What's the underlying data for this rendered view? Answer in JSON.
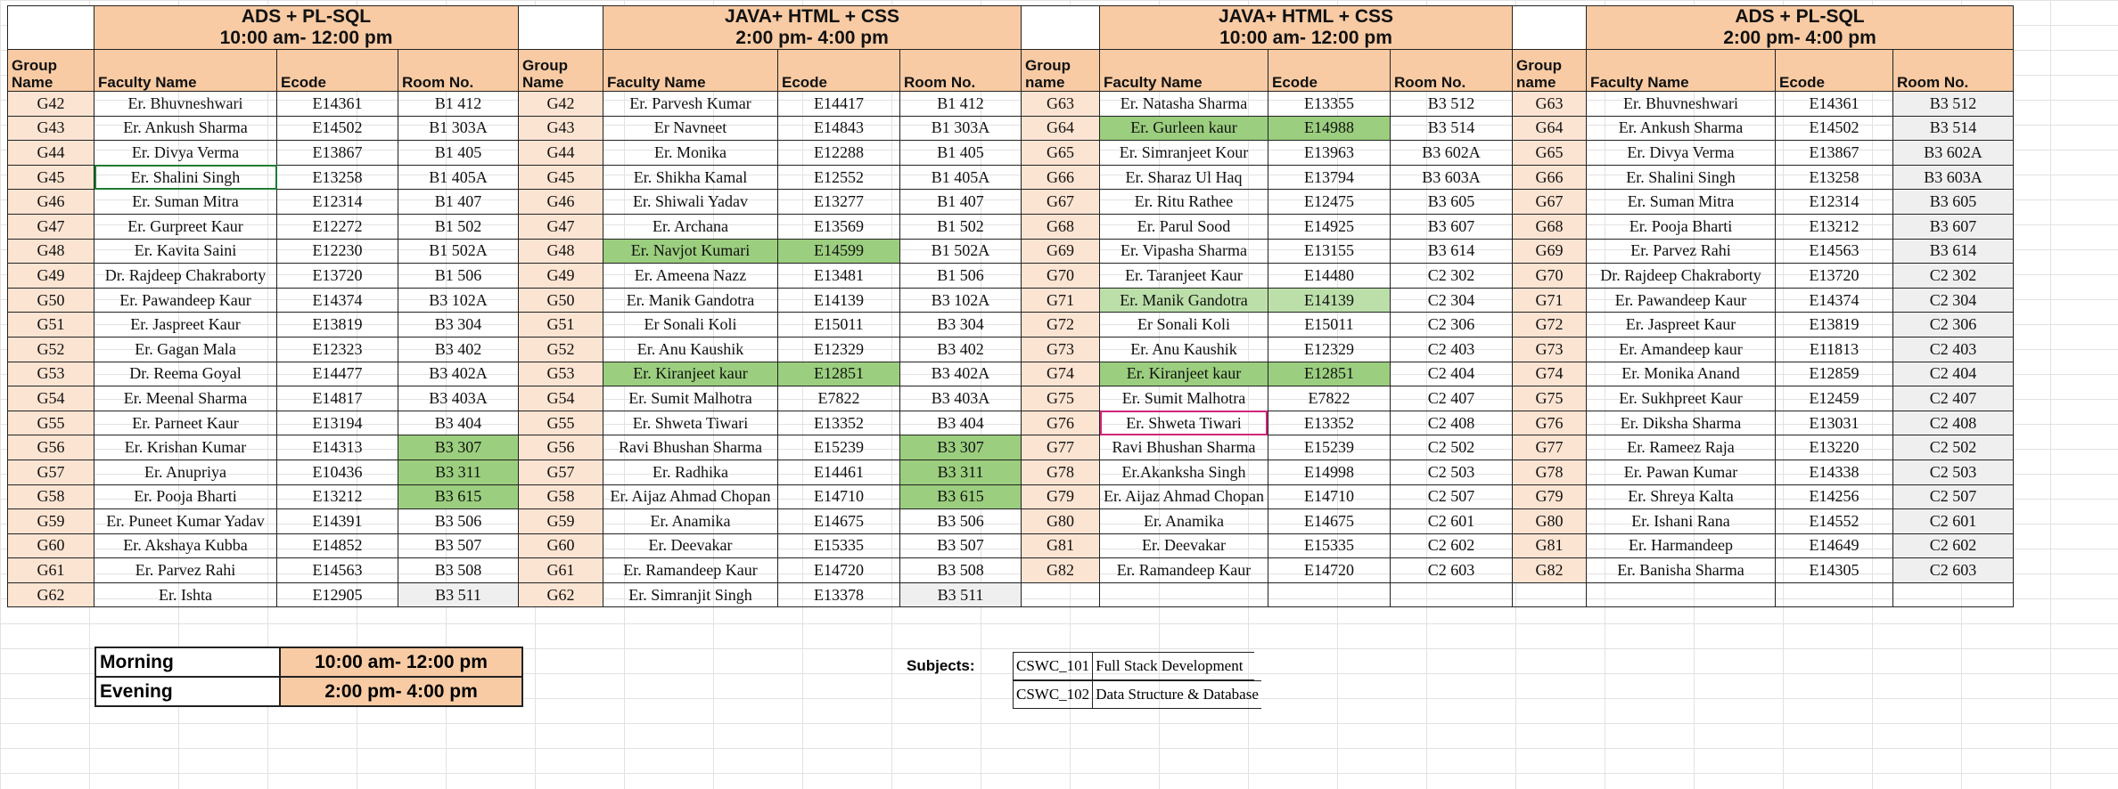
{
  "sections": [
    {
      "title": "ADS + PL-SQL",
      "time": "10:00 am- 12:00 pm"
    },
    {
      "title": "JAVA+ HTML + CSS",
      "time": "2:00 pm- 4:00 pm"
    },
    {
      "title": "JAVA+ HTML + CSS",
      "time": "10:00 am- 12:00 pm"
    },
    {
      "title": "ADS + PL-SQL",
      "time": "2:00 pm- 4:00 pm"
    }
  ],
  "headers": [
    [
      "Group Name",
      "Faculty Name",
      "Ecode",
      "Room No."
    ],
    [
      "Group Name",
      "Faculty Name",
      "Ecode",
      "Room No."
    ],
    [
      "Group name",
      "Faculty Name",
      "Ecode",
      "Room No."
    ],
    [
      "Group name",
      "Faculty Name",
      "Ecode",
      "Room No."
    ]
  ],
  "rows": [
    [
      "G42",
      "Er. Bhuvneshwari",
      "E14361",
      "B1 412",
      "G42",
      "Er. Parvesh Kumar",
      "E14417",
      "B1 412",
      "G63",
      "Er. Natasha Sharma",
      "E13355",
      "B3 512",
      "G63",
      "Er. Bhuvneshwari",
      "E14361",
      "B3 512"
    ],
    [
      "G43",
      "Er. Ankush Sharma",
      "E14502",
      "B1 303A",
      "G43",
      "Er Navneet",
      "E14843",
      "B1 303A",
      "G64",
      "Er. Gurleen kaur",
      "E14988",
      "B3 514",
      "G64",
      "Er. Ankush Sharma",
      "E14502",
      "B3 514"
    ],
    [
      "G44",
      "Er. Divya Verma",
      "E13867",
      "B1 405",
      "G44",
      "Er. Monika",
      "E12288",
      "B1 405",
      "G65",
      "Er. Simranjeet Kour",
      "E13963",
      "B3 602A",
      "G65",
      "Er. Divya Verma",
      "E13867",
      "B3 602A"
    ],
    [
      "G45",
      "Er. Shalini Singh",
      "E13258",
      "B1 405A",
      "G45",
      "Er. Shikha Kamal",
      "E12552",
      "B1 405A",
      "G66",
      "Er. Sharaz Ul Haq",
      "E13794",
      "B3 603A",
      "G66",
      "Er. Shalini Singh",
      "E13258",
      "B3 603A"
    ],
    [
      "G46",
      "Er. Suman Mitra",
      "E12314",
      "B1 407",
      "G46",
      "Er. Shiwali Yadav",
      "E13277",
      "B1 407",
      "G67",
      "Er. Ritu Rathee",
      "E12475",
      "B3 605",
      "G67",
      "Er. Suman Mitra",
      "E12314",
      "B3 605"
    ],
    [
      "G47",
      "Er. Gurpreet Kaur",
      "E12272",
      "B1 502",
      "G47",
      "Er. Archana",
      "E13569",
      "B1 502",
      "G68",
      "Er. Parul Sood",
      "E14925",
      "B3 607",
      "G68",
      "Er. Pooja Bharti",
      "E13212",
      "B3 607"
    ],
    [
      "G48",
      "Er. Kavita Saini",
      "E12230",
      "B1 502A",
      "G48",
      "Er. Navjot Kumari",
      "E14599",
      "B1 502A",
      "G69",
      "Er. Vipasha Sharma",
      "E13155",
      "B3 614",
      "G69",
      "Er. Parvez Rahi",
      "E14563",
      "B3 614"
    ],
    [
      "G49",
      "Dr. Rajdeep Chakraborty",
      "E13720",
      "B1 506",
      "G49",
      "Er. Ameena Nazz",
      "E13481",
      "B1 506",
      "G70",
      "Er. Taranjeet Kaur",
      "E14480",
      "C2 302",
      "G70",
      "Dr. Rajdeep Chakraborty",
      "E13720",
      "C2 302"
    ],
    [
      "G50",
      "Er. Pawandeep Kaur",
      "E14374",
      "B3 102A",
      "G50",
      "Er. Manik Gandotra",
      "E14139",
      "B3 102A",
      "G71",
      "Er. Manik Gandotra",
      "E14139",
      "C2 304",
      "G71",
      "Er. Pawandeep Kaur",
      "E14374",
      "C2 304"
    ],
    [
      "G51",
      "Er. Jaspreet Kaur",
      "E13819",
      "B3 304",
      "G51",
      "Er Sonali Koli",
      "E15011",
      "B3 304",
      "G72",
      "Er Sonali Koli",
      "E15011",
      "C2 306",
      "G72",
      "Er. Jaspreet Kaur",
      "E13819",
      "C2 306"
    ],
    [
      "G52",
      "Er. Gagan Mala",
      "E12323",
      "B3 402",
      "G52",
      "Er. Anu Kaushik",
      "E12329",
      "B3 402",
      "G73",
      "Er. Anu Kaushik",
      "E12329",
      "C2 403",
      "G73",
      "Er. Amandeep kaur",
      "E11813",
      "C2 403"
    ],
    [
      "G53",
      "Dr. Reema Goyal",
      "E14477",
      "B3 402A",
      "G53",
      "Er. Kiranjeet kaur",
      "E12851",
      "B3 402A",
      "G74",
      "Er. Kiranjeet kaur",
      "E12851",
      "C2 404",
      "G74",
      "Er. Monika Anand",
      "E12859",
      "C2 404"
    ],
    [
      "G54",
      "Er. Meenal Sharma",
      "E14817",
      "B3 403A",
      "G54",
      "Er. Sumit Malhotra",
      "E7822",
      "B3 403A",
      "G75",
      "Er. Sumit Malhotra",
      "E7822",
      "C2 407",
      "G75",
      "Er. Sukhpreet Kaur",
      "E12459",
      "C2 407"
    ],
    [
      "G55",
      "Er. Parneet Kaur",
      "E13194",
      "B3 404",
      "G55",
      "Er. Shweta Tiwari",
      "E13352",
      "B3 404",
      "G76",
      "Er. Shweta Tiwari",
      "E13352",
      "C2 408",
      "G76",
      "Er. Diksha Sharma",
      "E13031",
      "C2 408"
    ],
    [
      "G56",
      "Er. Krishan Kumar",
      "E14313",
      "B3 307",
      "G56",
      "Ravi Bhushan Sharma",
      "E15239",
      "B3 307",
      "G77",
      "Ravi Bhushan Sharma",
      "E15239",
      "C2 502",
      "G77",
      "Er. Rameez Raja",
      "E13220",
      "C2 502"
    ],
    [
      "G57",
      "Er. Anupriya",
      "E10436",
      "B3 311",
      "G57",
      "Er. Radhika",
      "E14461",
      "B3 311",
      "G78",
      "Er.Akanksha Singh",
      "E14998",
      "C2 503",
      "G78",
      "Er. Pawan Kumar",
      "E14338",
      "C2 503"
    ],
    [
      "G58",
      "Er. Pooja Bharti",
      "E13212",
      "B3 615",
      "G58",
      "Er. Aijaz Ahmad Chopan",
      "E14710",
      "B3 615",
      "G79",
      "Er. Aijaz Ahmad Chopan",
      "E14710",
      "C2 507",
      "G79",
      "Er. Shreya Kalta",
      "E14256",
      "C2 507"
    ],
    [
      "G59",
      "Er. Puneet Kumar Yadav",
      "E14391",
      "B3 506",
      "G59",
      "Er. Anamika",
      "E14675",
      "B3 506",
      "G80",
      "Er. Anamika",
      "E14675",
      "C2 601",
      "G80",
      "Er. Ishani Rana",
      "E14552",
      "C2 601"
    ],
    [
      "G60",
      "Er. Akshaya Kubba",
      "E14852",
      "B3 507",
      "G60",
      "Er. Deevakar",
      "E15335",
      "B3 507",
      "G81",
      "Er. Deevakar",
      "E15335",
      "C2 602",
      "G81",
      "Er. Harmandeep",
      "E14649",
      "C2 602"
    ],
    [
      "G61",
      "Er. Parvez Rahi",
      "E14563",
      "B3 508",
      "G61",
      "Er. Ramandeep Kaur",
      "E14720",
      "B3 508",
      "G82",
      "Er. Ramandeep Kaur",
      "E14720",
      "C2 603",
      "G82",
      "Er. Banisha Sharma",
      "E14305",
      "C2 603"
    ],
    [
      "G62",
      "Er. Ishta",
      "E12905",
      "B3 511",
      "G62",
      "Er. Simranjit Singh",
      "E13378",
      "B3 511",
      "",
      "",
      "",
      "",
      "",
      "",
      "",
      ""
    ]
  ],
  "legend": [
    {
      "label": "Morning",
      "time": "10:00 am- 12:00 pm"
    },
    {
      "label": "Evening",
      "time": "2:00 pm- 4:00 pm"
    }
  ],
  "subjects": {
    "label": "Subjects:",
    "items": [
      {
        "code": "CSWC_101",
        "name": "Full Stack Development"
      },
      {
        "code": "CSWC_102",
        "name": "Data Structure & Database"
      }
    ]
  },
  "colors": {
    "header_fill": "#f8cba4",
    "group_fill": "#fce4d2",
    "highlight_green": "#9bce7e",
    "highlight_light_green": "#bcdfaa",
    "grey_fill": "#efefef"
  }
}
